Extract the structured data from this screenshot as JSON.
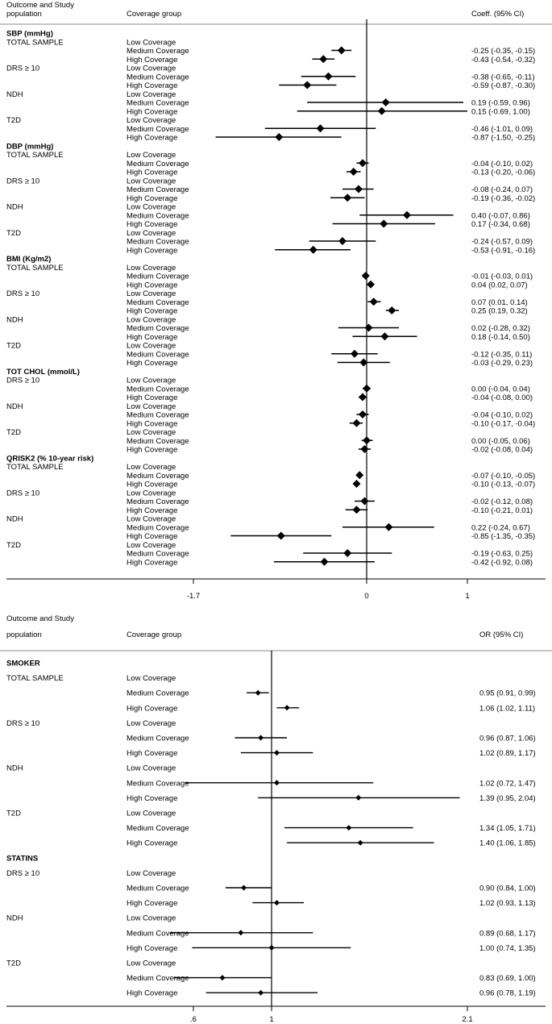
{
  "chart_data": [
    {
      "type": "forest",
      "measure": "Coefficient",
      "headers": {
        "outcome_line1": "Outcome and Study",
        "outcome_line2": "population",
        "group": "Coverage group",
        "estimate": "Coeff. (95% CI)"
      },
      "xlim": [
        -1.7,
        1
      ],
      "xticks": [
        "-1.7",
        "0",
        "1"
      ],
      "reference_line": 0,
      "rows": [
        {
          "kind": "heading",
          "label": "SBP (mmHg)"
        },
        {
          "kind": "data",
          "population": "TOTAL SAMPLE",
          "group": "Low Coverage",
          "est": null,
          "lo": null,
          "hi": null,
          "ci_text": ""
        },
        {
          "kind": "data",
          "population": "",
          "group": "Medium Coverage",
          "est": -0.25,
          "lo": -0.35,
          "hi": -0.15,
          "ci_text": "-0.25 (-0.35, -0.15)"
        },
        {
          "kind": "data",
          "population": "",
          "group": "High Coverage",
          "est": -0.43,
          "lo": -0.54,
          "hi": -0.32,
          "ci_text": "-0.43 (-0.54, -0.32)"
        },
        {
          "kind": "data",
          "population": "DRS ≥ 10",
          "group": "Low Coverage",
          "est": null,
          "lo": null,
          "hi": null,
          "ci_text": ""
        },
        {
          "kind": "data",
          "population": "",
          "group": "Medium Coverage",
          "est": -0.38,
          "lo": -0.65,
          "hi": -0.11,
          "ci_text": "-0.38 (-0.65, -0.11)"
        },
        {
          "kind": "data",
          "population": "",
          "group": "High Coverage",
          "est": -0.59,
          "lo": -0.87,
          "hi": -0.3,
          "ci_text": "-0.59 (-0.87, -0.30)"
        },
        {
          "kind": "data",
          "population": "NDH",
          "group": "Low Coverage",
          "est": null,
          "lo": null,
          "hi": null,
          "ci_text": ""
        },
        {
          "kind": "data",
          "population": "",
          "group": "Medium Coverage",
          "est": 0.19,
          "lo": -0.59,
          "hi": 0.96,
          "ci_text": "0.19 (-0.59, 0.96)"
        },
        {
          "kind": "data",
          "population": "",
          "group": "High Coverage",
          "est": 0.15,
          "lo": -0.69,
          "hi": 1.0,
          "ci_text": "0.15 (-0.69, 1.00)"
        },
        {
          "kind": "data",
          "population": "T2D",
          "group": "Low Coverage",
          "est": null,
          "lo": null,
          "hi": null,
          "ci_text": ""
        },
        {
          "kind": "data",
          "population": "",
          "group": "Medium Coverage",
          "est": -0.46,
          "lo": -1.01,
          "hi": 0.09,
          "ci_text": "-0.46 (-1.01, 0.09)"
        },
        {
          "kind": "data",
          "population": "",
          "group": "High Coverage",
          "est": -0.87,
          "lo": -1.5,
          "hi": -0.25,
          "ci_text": "-0.87 (-1.50, -0.25)"
        },
        {
          "kind": "heading",
          "label": "DBP (mmHg)"
        },
        {
          "kind": "data",
          "population": "TOTAL SAMPLE",
          "group": "Low Coverage",
          "est": null,
          "lo": null,
          "hi": null,
          "ci_text": ""
        },
        {
          "kind": "data",
          "population": "",
          "group": "Medium Coverage",
          "est": -0.04,
          "lo": -0.1,
          "hi": 0.02,
          "ci_text": "-0.04 (-0.10, 0.02)"
        },
        {
          "kind": "data",
          "population": "",
          "group": "High Coverage",
          "est": -0.13,
          "lo": -0.2,
          "hi": -0.06,
          "ci_text": "-0.13 (-0.20, -0.06)"
        },
        {
          "kind": "data",
          "population": "DRS ≥ 10",
          "group": "Low Coverage",
          "est": null,
          "lo": null,
          "hi": null,
          "ci_text": ""
        },
        {
          "kind": "data",
          "population": "",
          "group": "Medium Coverage",
          "est": -0.08,
          "lo": -0.24,
          "hi": 0.07,
          "ci_text": "-0.08 (-0.24, 0.07)"
        },
        {
          "kind": "data",
          "population": "",
          "group": "High Coverage",
          "est": -0.19,
          "lo": -0.36,
          "hi": -0.02,
          "ci_text": "-0.19 (-0.36, -0.02)"
        },
        {
          "kind": "data",
          "population": "NDH",
          "group": "Low Coverage",
          "est": null,
          "lo": null,
          "hi": null,
          "ci_text": ""
        },
        {
          "kind": "data",
          "population": "",
          "group": "Medium Coverage",
          "est": 0.4,
          "lo": -0.07,
          "hi": 0.86,
          "ci_text": "0.40 (-0.07, 0.86)"
        },
        {
          "kind": "data",
          "population": "",
          "group": "High Coverage",
          "est": 0.17,
          "lo": -0.34,
          "hi": 0.68,
          "ci_text": "0.17 (-0.34, 0.68)"
        },
        {
          "kind": "data",
          "population": "T2D",
          "group": "Low Coverage",
          "est": null,
          "lo": null,
          "hi": null,
          "ci_text": ""
        },
        {
          "kind": "data",
          "population": "",
          "group": "Medium Coverage",
          "est": -0.24,
          "lo": -0.57,
          "hi": 0.09,
          "ci_text": "-0.24 (-0.57, 0.09)"
        },
        {
          "kind": "data",
          "population": "",
          "group": "High Coverage",
          "est": -0.53,
          "lo": -0.91,
          "hi": -0.16,
          "ci_text": "-0.53 (-0.91, -0.16)"
        },
        {
          "kind": "heading",
          "label": "BMI (Kg/m2)"
        },
        {
          "kind": "data",
          "population": "TOTAL SAMPLE",
          "group": "Low Coverage",
          "est": null,
          "lo": null,
          "hi": null,
          "ci_text": ""
        },
        {
          "kind": "data",
          "population": "",
          "group": "Medium Coverage",
          "est": -0.01,
          "lo": -0.03,
          "hi": 0.01,
          "ci_text": "-0.01 (-0.03, 0.01)"
        },
        {
          "kind": "data",
          "population": "",
          "group": "High Coverage",
          "est": 0.04,
          "lo": 0.02,
          "hi": 0.07,
          "ci_text": "0.04 (0.02, 0.07)"
        },
        {
          "kind": "data",
          "population": "DRS ≥ 10",
          "group": "Low Coverage",
          "est": null,
          "lo": null,
          "hi": null,
          "ci_text": ""
        },
        {
          "kind": "data",
          "population": "",
          "group": "Medium Coverage",
          "est": 0.07,
          "lo": 0.01,
          "hi": 0.14,
          "ci_text": "0.07 (0.01, 0.14)"
        },
        {
          "kind": "data",
          "population": "",
          "group": "High Coverage",
          "est": 0.25,
          "lo": 0.19,
          "hi": 0.32,
          "ci_text": "0.25 (0.19, 0.32)"
        },
        {
          "kind": "data",
          "population": "NDH",
          "group": "Low Coverage",
          "est": null,
          "lo": null,
          "hi": null,
          "ci_text": ""
        },
        {
          "kind": "data",
          "population": "",
          "group": "Medium Coverage",
          "est": 0.02,
          "lo": -0.28,
          "hi": 0.32,
          "ci_text": "0.02 (-0.28, 0.32)"
        },
        {
          "kind": "data",
          "population": "",
          "group": "High Coverage",
          "est": 0.18,
          "lo": -0.14,
          "hi": 0.5,
          "ci_text": "0.18 (-0.14, 0.50)"
        },
        {
          "kind": "data",
          "population": "T2D",
          "group": "Low Coverage",
          "est": null,
          "lo": null,
          "hi": null,
          "ci_text": ""
        },
        {
          "kind": "data",
          "population": "",
          "group": "Medium Coverage",
          "est": -0.12,
          "lo": -0.35,
          "hi": 0.11,
          "ci_text": "-0.12 (-0.35, 0.11)"
        },
        {
          "kind": "data",
          "population": "",
          "group": "High Coverage",
          "est": -0.03,
          "lo": -0.29,
          "hi": 0.23,
          "ci_text": "-0.03 (-0.29, 0.23)"
        },
        {
          "kind": "heading",
          "label": "TOT CHOL (mmol/L)"
        },
        {
          "kind": "data",
          "population": "DRS ≥ 10",
          "group": "Low Coverage",
          "est": null,
          "lo": null,
          "hi": null,
          "ci_text": ""
        },
        {
          "kind": "data",
          "population": "",
          "group": "Medium Coverage",
          "est": 0.0,
          "lo": -0.04,
          "hi": 0.04,
          "ci_text": "0.00 (-0.04, 0.04)"
        },
        {
          "kind": "data",
          "population": "",
          "group": "High Coverage",
          "est": -0.04,
          "lo": -0.08,
          "hi": 0.0,
          "ci_text": "-0.04 (-0.08, 0.00)"
        },
        {
          "kind": "data",
          "population": "NDH",
          "group": "Low Coverage",
          "est": null,
          "lo": null,
          "hi": null,
          "ci_text": ""
        },
        {
          "kind": "data",
          "population": "",
          "group": "Medium Coverage",
          "est": -0.04,
          "lo": -0.1,
          "hi": 0.02,
          "ci_text": "-0.04 (-0.10, 0.02)"
        },
        {
          "kind": "data",
          "population": "",
          "group": "High Coverage",
          "est": -0.1,
          "lo": -0.17,
          "hi": -0.04,
          "ci_text": "-0.10 (-0.17, -0.04)"
        },
        {
          "kind": "data",
          "population": "T2D",
          "group": "Low Coverage",
          "est": null,
          "lo": null,
          "hi": null,
          "ci_text": ""
        },
        {
          "kind": "data",
          "population": "",
          "group": "Medium Coverage",
          "est": 0.0,
          "lo": -0.05,
          "hi": 0.06,
          "ci_text": "0.00 (-0.05, 0.06)"
        },
        {
          "kind": "data",
          "population": "",
          "group": "High Coverage",
          "est": -0.02,
          "lo": -0.08,
          "hi": 0.04,
          "ci_text": "-0.02 (-0.08, 0.04)"
        },
        {
          "kind": "heading",
          "label": "QRISK2 (% 10-year risk)"
        },
        {
          "kind": "data",
          "population": "TOTAL SAMPLE",
          "group": "Low Coverage",
          "est": null,
          "lo": null,
          "hi": null,
          "ci_text": ""
        },
        {
          "kind": "data",
          "population": "",
          "group": "Medium Coverage",
          "est": -0.07,
          "lo": -0.1,
          "hi": -0.05,
          "ci_text": "-0.07 (-0.10, -0.05)"
        },
        {
          "kind": "data",
          "population": "",
          "group": "High Coverage",
          "est": -0.1,
          "lo": -0.13,
          "hi": -0.07,
          "ci_text": "-0.10 (-0.13, -0.07)"
        },
        {
          "kind": "data",
          "population": "DRS ≥ 10",
          "group": "Low Coverage",
          "est": null,
          "lo": null,
          "hi": null,
          "ci_text": ""
        },
        {
          "kind": "data",
          "population": "",
          "group": "Medium Coverage",
          "est": -0.02,
          "lo": -0.12,
          "hi": 0.08,
          "ci_text": "-0.02 (-0.12, 0.08)"
        },
        {
          "kind": "data",
          "population": "",
          "group": "High Coverage",
          "est": -0.1,
          "lo": -0.21,
          "hi": 0.01,
          "ci_text": "-0.10 (-0.21, 0.01)"
        },
        {
          "kind": "data",
          "population": "NDH",
          "group": "Low Coverage",
          "est": null,
          "lo": null,
          "hi": null,
          "ci_text": ""
        },
        {
          "kind": "data",
          "population": "",
          "group": "Medium Coverage",
          "est": 0.22,
          "lo": -0.24,
          "hi": 0.67,
          "ci_text": "0.22 (-0.24, 0.67)"
        },
        {
          "kind": "data",
          "population": "",
          "group": "High Coverage",
          "est": -0.85,
          "lo": -1.35,
          "hi": -0.35,
          "ci_text": "-0.85 (-1.35, -0.35)"
        },
        {
          "kind": "data",
          "population": "T2D",
          "group": "Low Coverage",
          "est": null,
          "lo": null,
          "hi": null,
          "ci_text": ""
        },
        {
          "kind": "data",
          "population": "",
          "group": "Medium Coverage",
          "est": -0.19,
          "lo": -0.63,
          "hi": 0.25,
          "ci_text": "-0.19 (-0.63, 0.25)"
        },
        {
          "kind": "data",
          "population": "",
          "group": "High Coverage",
          "est": -0.42,
          "lo": -0.92,
          "hi": 0.08,
          "ci_text": "-0.42 (-0.92, 0.08)"
        }
      ]
    },
    {
      "type": "forest",
      "measure": "Odds ratio",
      "headers": {
        "outcome_line1": "Outcome and Study",
        "outcome_line2": "population",
        "group": "Coverage group",
        "estimate": "OR (95% CI)"
      },
      "xlim": [
        0.6,
        2.1
      ],
      "xticks": [
        ".6",
        "1",
        "2.1"
      ],
      "reference_line": 1,
      "rows": [
        {
          "kind": "heading",
          "label": "SMOKER"
        },
        {
          "kind": "data",
          "population": "TOTAL SAMPLE",
          "group": "Low Coverage",
          "est": null,
          "lo": null,
          "hi": null,
          "ci_text": ""
        },
        {
          "kind": "data",
          "population": "",
          "group": "Medium Coverage",
          "est": 0.95,
          "lo": 0.91,
          "hi": 0.99,
          "ci_text": "0.95 (0.91, 0.99)"
        },
        {
          "kind": "data",
          "population": "",
          "group": "High Coverage",
          "est": 1.06,
          "lo": 1.02,
          "hi": 1.11,
          "ci_text": "1.06 (1.02, 1.11)"
        },
        {
          "kind": "data",
          "population": "DRS ≥ 10",
          "group": "Low Coverage",
          "est": null,
          "lo": null,
          "hi": null,
          "ci_text": ""
        },
        {
          "kind": "data",
          "population": "",
          "group": "Medium Coverage",
          "est": 0.96,
          "lo": 0.87,
          "hi": 1.06,
          "ci_text": "0.96 (0.87, 1.06)"
        },
        {
          "kind": "data",
          "population": "",
          "group": "High Coverage",
          "est": 1.02,
          "lo": 0.89,
          "hi": 1.17,
          "ci_text": "1.02 (0.89, 1.17)"
        },
        {
          "kind": "data",
          "population": "NDH",
          "group": "Low Coverage",
          "est": null,
          "lo": null,
          "hi": null,
          "ci_text": ""
        },
        {
          "kind": "data",
          "population": "",
          "group": "Medium Coverage",
          "est": 1.02,
          "lo": 0.72,
          "hi": 1.47,
          "ci_text": "1.02 (0.72, 1.47)"
        },
        {
          "kind": "data",
          "population": "",
          "group": "High Coverage",
          "est": 1.39,
          "lo": 0.95,
          "hi": 2.04,
          "ci_text": "1.39 (0.95, 2.04)"
        },
        {
          "kind": "data",
          "population": "T2D",
          "group": "Low Coverage",
          "est": null,
          "lo": null,
          "hi": null,
          "ci_text": ""
        },
        {
          "kind": "data",
          "population": "",
          "group": "Medium Coverage",
          "est": 1.34,
          "lo": 1.05,
          "hi": 1.71,
          "ci_text": "1.34 (1.05, 1.71)"
        },
        {
          "kind": "data",
          "population": "",
          "group": "High Coverage",
          "est": 1.4,
          "lo": 1.06,
          "hi": 1.85,
          "ci_text": "1.40 (1.06, 1.85)"
        },
        {
          "kind": "heading",
          "label": "STATINS"
        },
        {
          "kind": "data",
          "population": "DRS ≥ 10",
          "group": "Low Coverage",
          "est": null,
          "lo": null,
          "hi": null,
          "ci_text": ""
        },
        {
          "kind": "data",
          "population": "",
          "group": "Medium Coverage",
          "est": 0.9,
          "lo": 0.84,
          "hi": 1.0,
          "ci_text": "0.90 (0.84, 1.00)"
        },
        {
          "kind": "data",
          "population": "",
          "group": "High Coverage",
          "est": 1.02,
          "lo": 0.93,
          "hi": 1.13,
          "ci_text": "1.02 (0.93, 1.13)"
        },
        {
          "kind": "data",
          "population": "NDH",
          "group": "Low Coverage",
          "est": null,
          "lo": null,
          "hi": null,
          "ci_text": ""
        },
        {
          "kind": "data",
          "population": "",
          "group": "Medium Coverage",
          "est": 0.89,
          "lo": 0.68,
          "hi": 1.17,
          "ci_text": "0.89 (0.68, 1.17)"
        },
        {
          "kind": "data",
          "population": "",
          "group": "High Coverage",
          "est": 1.0,
          "lo": 0.74,
          "hi": 1.35,
          "ci_text": "1.00 (0.74, 1.35)"
        },
        {
          "kind": "data",
          "population": "T2D",
          "group": "Low Coverage",
          "est": null,
          "lo": null,
          "hi": null,
          "ci_text": ""
        },
        {
          "kind": "data",
          "population": "",
          "group": "Medium Coverage",
          "est": 0.83,
          "lo": 0.69,
          "hi": 1.0,
          "ci_text": "0.83 (0.69, 1.00)"
        },
        {
          "kind": "data",
          "population": "",
          "group": "High Coverage",
          "est": 0.96,
          "lo": 0.78,
          "hi": 1.19,
          "ci_text": "0.96 (0.78, 1.19)"
        }
      ]
    }
  ]
}
